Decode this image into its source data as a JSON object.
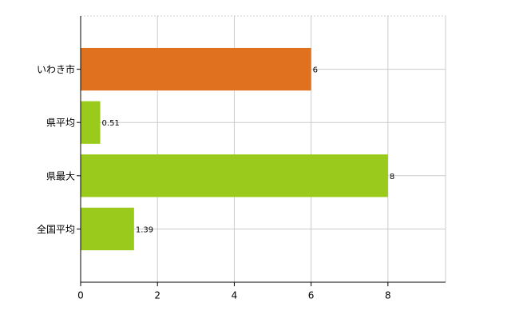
{
  "chart_data": {
    "type": "hbar",
    "categories": [
      "いわき市",
      "県平均",
      "県最大",
      "全国平均"
    ],
    "values": [
      6,
      0.51,
      8,
      1.39
    ],
    "colors": [
      "#e0711f",
      "#9acb1c",
      "#9acb1c",
      "#9acb1c"
    ],
    "xlim": [
      0,
      9.5
    ],
    "xticks": [
      0,
      2,
      4,
      6,
      8
    ],
    "grid": true
  }
}
